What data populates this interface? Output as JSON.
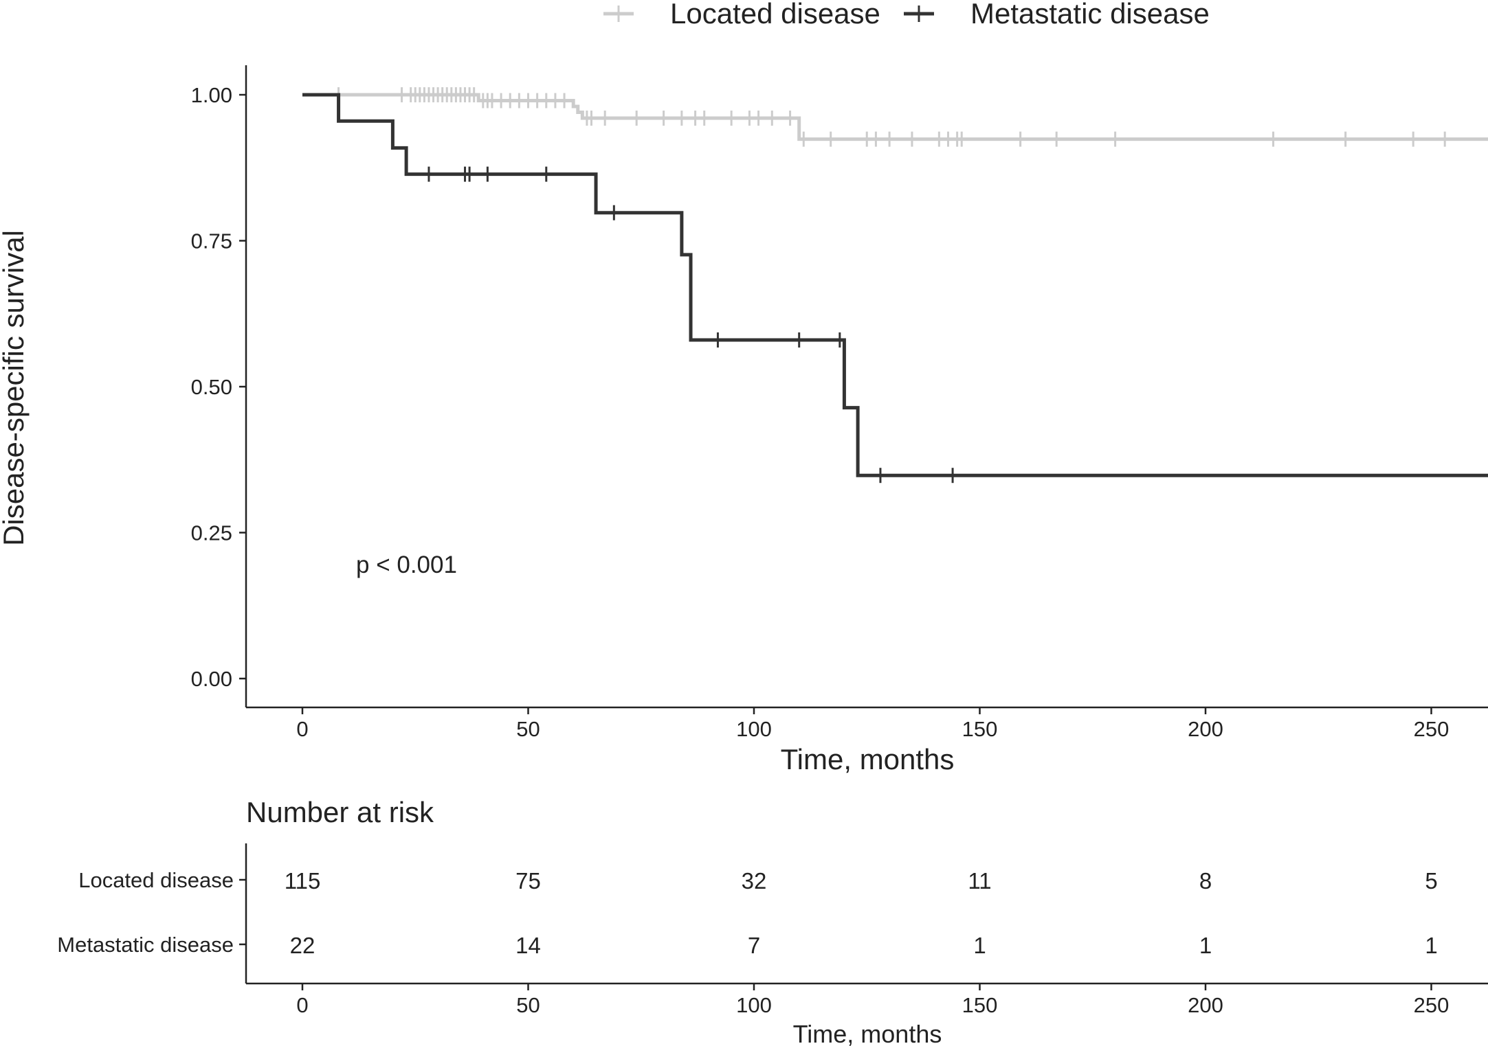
{
  "legend": {
    "items": [
      {
        "label": "Located disease",
        "color": "#cccccc"
      },
      {
        "label": "Metastatic disease",
        "color": "#333333"
      }
    ]
  },
  "chart_data": {
    "type": "line",
    "subtype": "kaplan-meier",
    "ylabel": "Disease-specific survival",
    "xlabel": "Time, months",
    "xlim": [
      -12.5,
      263
    ],
    "ylim": [
      -0.05,
      1.05
    ],
    "x_ticks": [
      "0",
      "50",
      "100",
      "150",
      "200",
      "250"
    ],
    "x_tick_values": [
      0,
      50,
      100,
      150,
      200,
      250
    ],
    "y_ticks": [
      "0.00",
      "0.25",
      "0.50",
      "0.75",
      "1.00"
    ],
    "y_tick_values": [
      0,
      0.25,
      0.5,
      0.75,
      1.0
    ],
    "annotation": "p < 0.001",
    "series": [
      {
        "name": "Located disease",
        "color": "#cccccc",
        "steps": [
          [
            0,
            1.0
          ],
          [
            39,
            0.99
          ],
          [
            60,
            0.98
          ],
          [
            61,
            0.97
          ],
          [
            62,
            0.96
          ],
          [
            110,
            0.924
          ],
          [
            263,
            0.924
          ]
        ],
        "censors": [
          8,
          22,
          24,
          25,
          26,
          27,
          28,
          29,
          30,
          31,
          32,
          33,
          34,
          35,
          36,
          37,
          38,
          40,
          41,
          42,
          44,
          46,
          48,
          50,
          52,
          54,
          56,
          58,
          63,
          64,
          67,
          74,
          80,
          84,
          87,
          89,
          95,
          99,
          101,
          104,
          108,
          111,
          117,
          125,
          127,
          130,
          135,
          141,
          143,
          145,
          146,
          159,
          167,
          180,
          215,
          231,
          246,
          253
        ]
      },
      {
        "name": "Metastatic disease",
        "color": "#333333",
        "steps": [
          [
            0,
            1.0
          ],
          [
            8,
            0.955
          ],
          [
            20,
            0.909
          ],
          [
            23,
            0.864
          ],
          [
            65,
            0.798
          ],
          [
            84,
            0.726
          ],
          [
            86,
            0.58
          ],
          [
            120,
            0.464
          ],
          [
            123,
            0.348
          ],
          [
            263,
            0.348
          ]
        ],
        "censors": [
          28,
          36,
          37,
          41,
          54,
          69,
          92,
          110,
          119,
          128,
          144
        ]
      }
    ]
  },
  "risk_table": {
    "title": "Number at risk",
    "xlabel": "Time, months",
    "x_ticks": [
      "0",
      "50",
      "100",
      "150",
      "200",
      "250"
    ],
    "x_tick_values": [
      0,
      50,
      100,
      150,
      200,
      250
    ],
    "rows": [
      {
        "label": "Located disease",
        "values": [
          "115",
          "75",
          "32",
          "11",
          "8",
          "5"
        ]
      },
      {
        "label": "Metastatic disease",
        "values": [
          "22",
          "14",
          "7",
          "1",
          "1",
          "1"
        ]
      }
    ]
  }
}
